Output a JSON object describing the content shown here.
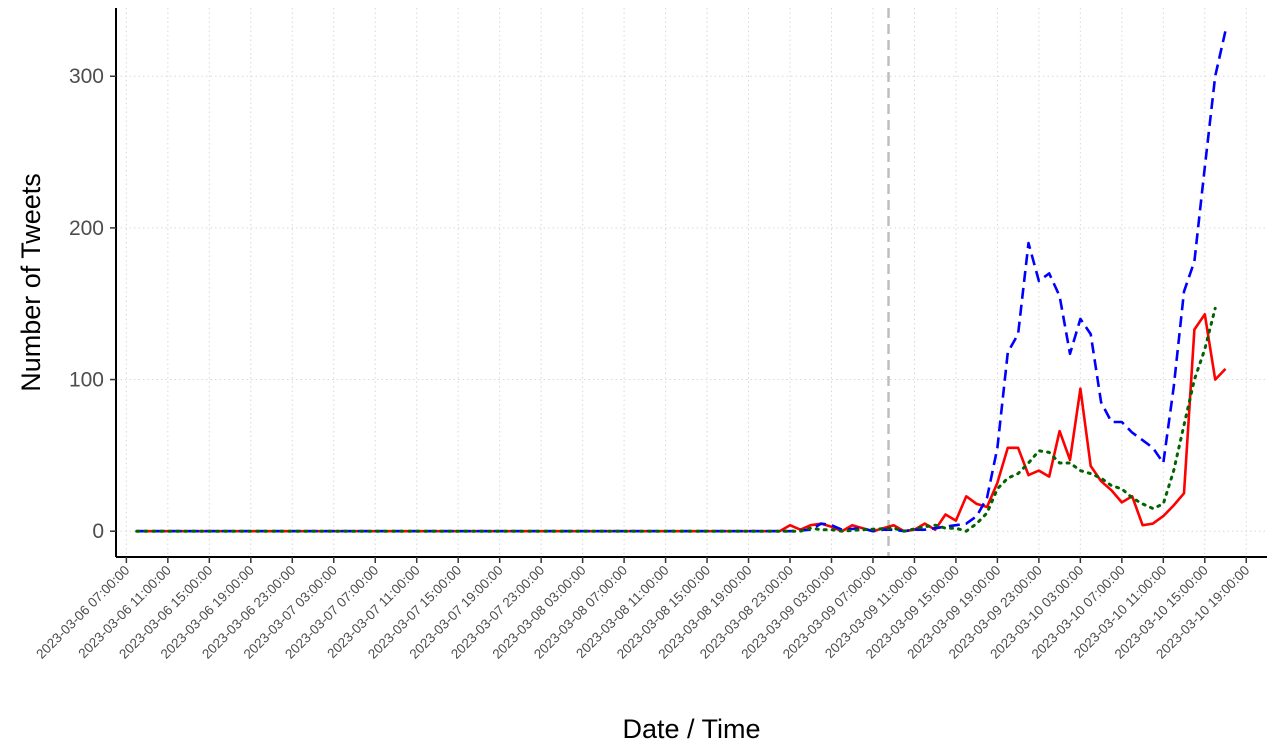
{
  "chart_data": {
    "type": "line",
    "title": "",
    "xlabel": "Date / Time",
    "ylabel": "Number of Tweets",
    "x_axis": {
      "min": "2023-03-06 06:00:00",
      "max": "2023-03-10 21:00:00",
      "tick_start": "2023-03-06 07:00:00",
      "tick_every_hours": 4,
      "tick_labels": [
        "2023-03-06 07:00:00",
        "2023-03-06 11:00:00",
        "2023-03-06 15:00:00",
        "2023-03-06 19:00:00",
        "2023-03-06 23:00:00",
        "2023-03-07 03:00:00",
        "2023-03-07 07:00:00",
        "2023-03-07 11:00:00",
        "2023-03-07 15:00:00",
        "2023-03-07 19:00:00",
        "2023-03-07 23:00:00",
        "2023-03-08 03:00:00",
        "2023-03-08 07:00:00",
        "2023-03-08 11:00:00",
        "2023-03-08 15:00:00",
        "2023-03-08 19:00:00",
        "2023-03-08 23:00:00",
        "2023-03-09 03:00:00",
        "2023-03-09 07:00:00",
        "2023-03-09 11:00:00",
        "2023-03-09 15:00:00",
        "2023-03-09 19:00:00",
        "2023-03-09 23:00:00",
        "2023-03-10 03:00:00",
        "2023-03-10 07:00:00",
        "2023-03-10 11:00:00",
        "2023-03-10 15:00:00",
        "2023-03-10 19:00:00"
      ]
    },
    "y_axis": {
      "ylim": [
        -17,
        345
      ],
      "ticks": [
        0,
        100,
        200,
        300
      ],
      "tick_labels": [
        "0",
        "100",
        "200",
        "300"
      ]
    },
    "grid": true,
    "legend": "none",
    "reference_line": {
      "x": "2023-03-09 08:30:00",
      "style": "dashed",
      "color": "#bebebe"
    },
    "series": [
      {
        "color": "#ff0000",
        "style": "solid",
        "points": [
          [
            "2023-03-06 08:00:00",
            0
          ],
          [
            "2023-03-08 22:00:00",
            0
          ],
          [
            "2023-03-08 23:00:00",
            4
          ],
          [
            "2023-03-09 00:00:00",
            1
          ],
          [
            "2023-03-09 01:00:00",
            4
          ],
          [
            "2023-03-09 02:00:00",
            5
          ],
          [
            "2023-03-09 03:00:00",
            3
          ],
          [
            "2023-03-09 04:00:00",
            0
          ],
          [
            "2023-03-09 05:00:00",
            4
          ],
          [
            "2023-03-09 06:00:00",
            2
          ],
          [
            "2023-03-09 07:00:00",
            0
          ],
          [
            "2023-03-09 08:00:00",
            2
          ],
          [
            "2023-03-09 09:00:00",
            4
          ],
          [
            "2023-03-09 10:00:00",
            0
          ],
          [
            "2023-03-09 11:00:00",
            1
          ],
          [
            "2023-03-09 12:00:00",
            5
          ],
          [
            "2023-03-09 13:00:00",
            1
          ],
          [
            "2023-03-09 14:00:00",
            11
          ],
          [
            "2023-03-09 15:00:00",
            7
          ],
          [
            "2023-03-09 16:00:00",
            23
          ],
          [
            "2023-03-09 17:00:00",
            18
          ],
          [
            "2023-03-09 18:00:00",
            16
          ],
          [
            "2023-03-09 19:00:00",
            32
          ],
          [
            "2023-03-09 20:00:00",
            55
          ],
          [
            "2023-03-09 21:00:00",
            55
          ],
          [
            "2023-03-09 22:00:00",
            37
          ],
          [
            "2023-03-09 23:00:00",
            40
          ],
          [
            "2023-03-10 00:00:00",
            36
          ],
          [
            "2023-03-10 01:00:00",
            66
          ],
          [
            "2023-03-10 02:00:00",
            47
          ],
          [
            "2023-03-10 03:00:00",
            94
          ],
          [
            "2023-03-10 04:00:00",
            43
          ],
          [
            "2023-03-10 05:00:00",
            33
          ],
          [
            "2023-03-10 06:00:00",
            27
          ],
          [
            "2023-03-10 07:00:00",
            19
          ],
          [
            "2023-03-10 08:00:00",
            23
          ],
          [
            "2023-03-10 09:00:00",
            4
          ],
          [
            "2023-03-10 10:00:00",
            5
          ],
          [
            "2023-03-10 11:00:00",
            10
          ],
          [
            "2023-03-10 12:00:00",
            17
          ],
          [
            "2023-03-10 13:00:00",
            25
          ],
          [
            "2023-03-10 14:00:00",
            133
          ],
          [
            "2023-03-10 15:00:00",
            143
          ],
          [
            "2023-03-10 16:00:00",
            100
          ],
          [
            "2023-03-10 17:00:00",
            107
          ]
        ]
      },
      {
        "color": "#0000ff",
        "style": "dashed",
        "points": [
          [
            "2023-03-06 08:00:00",
            0
          ],
          [
            "2023-03-08 23:00:00",
            0
          ],
          [
            "2023-03-09 01:00:00",
            1
          ],
          [
            "2023-03-09 02:00:00",
            5
          ],
          [
            "2023-03-09 03:00:00",
            4
          ],
          [
            "2023-03-09 04:00:00",
            1
          ],
          [
            "2023-03-09 06:00:00",
            2
          ],
          [
            "2023-03-09 07:00:00",
            0
          ],
          [
            "2023-03-09 08:00:00",
            1
          ],
          [
            "2023-03-09 09:00:00",
            1
          ],
          [
            "2023-03-09 10:00:00",
            0
          ],
          [
            "2023-03-09 11:00:00",
            1
          ],
          [
            "2023-03-09 12:00:00",
            1
          ],
          [
            "2023-03-09 13:00:00",
            2
          ],
          [
            "2023-03-09 14:00:00",
            3
          ],
          [
            "2023-03-09 15:00:00",
            4
          ],
          [
            "2023-03-09 16:00:00",
            5
          ],
          [
            "2023-03-09 17:00:00",
            10
          ],
          [
            "2023-03-09 18:00:00",
            22
          ],
          [
            "2023-03-09 19:00:00",
            55
          ],
          [
            "2023-03-09 20:00:00",
            118
          ],
          [
            "2023-03-09 21:00:00",
            130
          ],
          [
            "2023-03-09 22:00:00",
            190
          ],
          [
            "2023-03-09 23:00:00",
            165
          ],
          [
            "2023-03-10 00:00:00",
            170
          ],
          [
            "2023-03-10 01:00:00",
            155
          ],
          [
            "2023-03-10 02:00:00",
            117
          ],
          [
            "2023-03-10 03:00:00",
            140
          ],
          [
            "2023-03-10 04:00:00",
            130
          ],
          [
            "2023-03-10 05:00:00",
            85
          ],
          [
            "2023-03-10 06:00:00",
            72
          ],
          [
            "2023-03-10 07:00:00",
            72
          ],
          [
            "2023-03-10 08:00:00",
            65
          ],
          [
            "2023-03-10 09:00:00",
            60
          ],
          [
            "2023-03-10 10:00:00",
            55
          ],
          [
            "2023-03-10 11:00:00",
            45
          ],
          [
            "2023-03-10 12:00:00",
            95
          ],
          [
            "2023-03-10 13:00:00",
            158
          ],
          [
            "2023-03-10 14:00:00",
            178
          ],
          [
            "2023-03-10 15:00:00",
            240
          ],
          [
            "2023-03-10 16:00:00",
            300
          ],
          [
            "2023-03-10 17:00:00",
            330
          ]
        ]
      },
      {
        "color": "#006400",
        "style": "dotted",
        "points": [
          [
            "2023-03-06 08:00:00",
            0
          ],
          [
            "2023-03-09 00:00:00",
            0
          ],
          [
            "2023-03-09 01:00:00",
            2
          ],
          [
            "2023-03-09 02:00:00",
            1
          ],
          [
            "2023-03-09 03:00:00",
            1
          ],
          [
            "2023-03-09 04:00:00",
            0
          ],
          [
            "2023-03-09 06:00:00",
            1
          ],
          [
            "2023-03-09 09:00:00",
            2
          ],
          [
            "2023-03-09 10:00:00",
            0
          ],
          [
            "2023-03-09 12:00:00",
            3
          ],
          [
            "2023-03-09 13:00:00",
            4
          ],
          [
            "2023-03-09 14:00:00",
            2
          ],
          [
            "2023-03-09 15:00:00",
            2
          ],
          [
            "2023-03-09 16:00:00",
            0
          ],
          [
            "2023-03-09 17:00:00",
            5
          ],
          [
            "2023-03-09 18:00:00",
            12
          ],
          [
            "2023-03-09 19:00:00",
            28
          ],
          [
            "2023-03-09 20:00:00",
            35
          ],
          [
            "2023-03-09 21:00:00",
            38
          ],
          [
            "2023-03-09 22:00:00",
            45
          ],
          [
            "2023-03-09 23:00:00",
            53
          ],
          [
            "2023-03-10 00:00:00",
            52
          ],
          [
            "2023-03-10 01:00:00",
            45
          ],
          [
            "2023-03-10 02:00:00",
            45
          ],
          [
            "2023-03-10 03:00:00",
            40
          ],
          [
            "2023-03-10 04:00:00",
            38
          ],
          [
            "2023-03-10 05:00:00",
            35
          ],
          [
            "2023-03-10 06:00:00",
            30
          ],
          [
            "2023-03-10 07:00:00",
            28
          ],
          [
            "2023-03-10 08:00:00",
            22
          ],
          [
            "2023-03-10 09:00:00",
            18
          ],
          [
            "2023-03-10 10:00:00",
            15
          ],
          [
            "2023-03-10 11:00:00",
            18
          ],
          [
            "2023-03-10 12:00:00",
            40
          ],
          [
            "2023-03-10 13:00:00",
            70
          ],
          [
            "2023-03-10 14:00:00",
            100
          ],
          [
            "2023-03-10 15:00:00",
            120
          ],
          [
            "2023-03-10 16:00:00",
            147
          ]
        ]
      }
    ]
  }
}
